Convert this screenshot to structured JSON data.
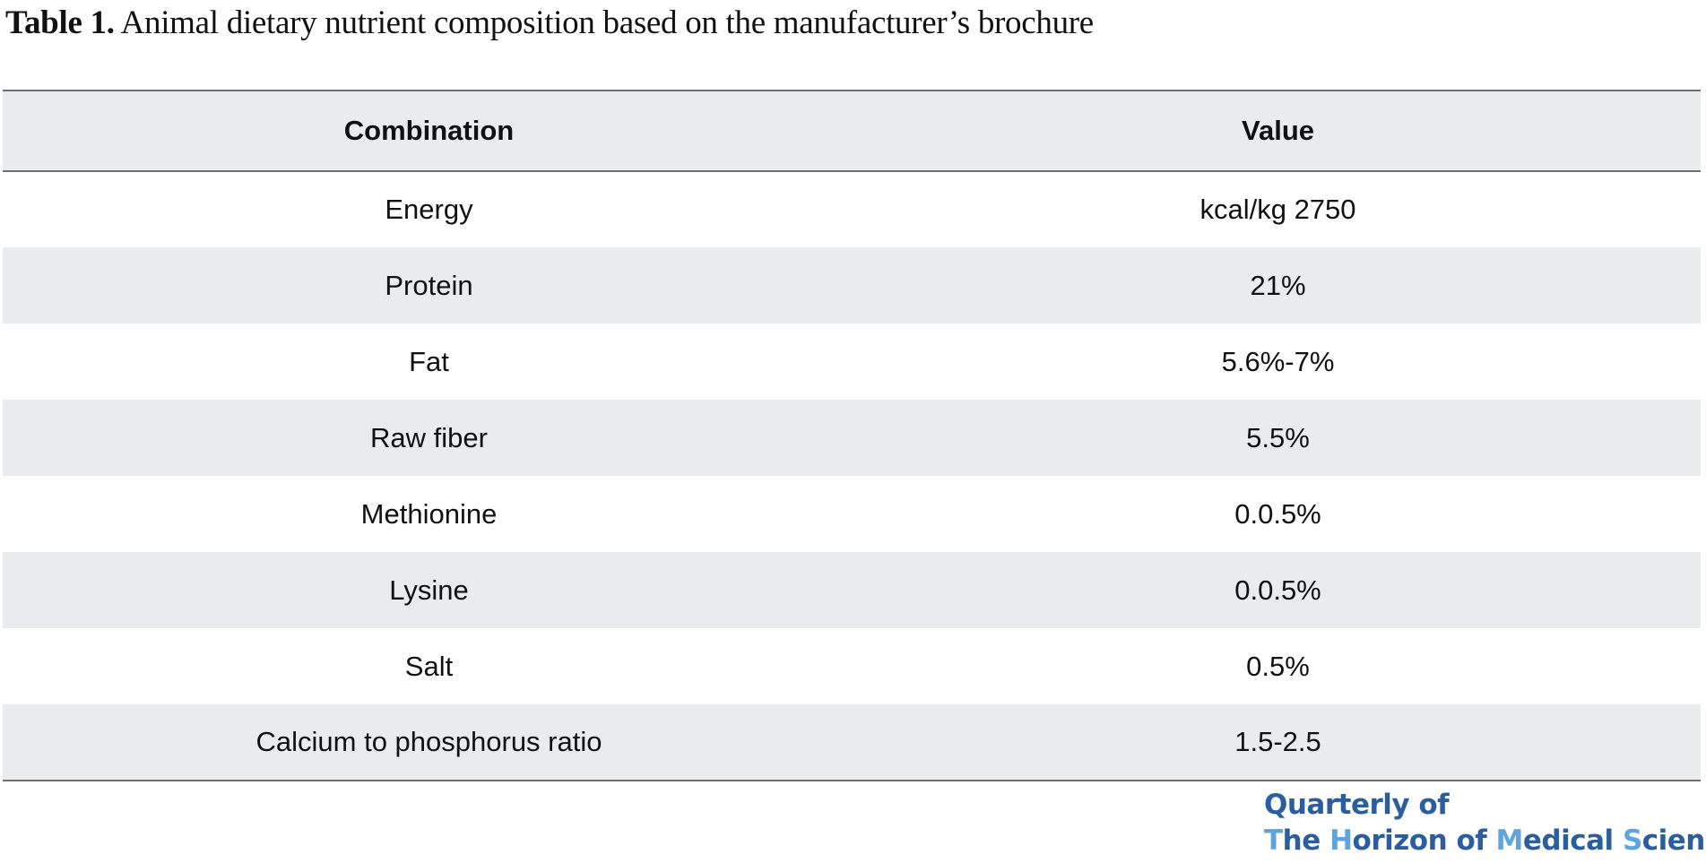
{
  "caption": {
    "label": "Table 1.",
    "text": " Animal dietary nutrient composition based on the manufacturer’s brochure"
  },
  "table": {
    "headers": [
      "Combination",
      "Value"
    ],
    "rows": [
      {
        "combination": "Energy",
        "value": "kcal/kg 2750"
      },
      {
        "combination": "Protein",
        "value": "21%"
      },
      {
        "combination": "Fat",
        "value": "5.6%-7%"
      },
      {
        "combination": "Raw fiber",
        "value": "5.5%"
      },
      {
        "combination": "Methionine",
        "value": "0.0.5%"
      },
      {
        "combination": "Lysine",
        "value": "0.0.5%"
      },
      {
        "combination": "Salt",
        "value": "0.5%"
      },
      {
        "combination": "Calcium to phosphorus ratio",
        "value": "1.5-2.5"
      }
    ]
  },
  "journal_logo": {
    "line1": "Quarterly of",
    "line2": "The Horizon of Medical Sciences"
  },
  "colors": {
    "header_bg": "#eaebed",
    "rule": "#6e6e6e",
    "logo_dark": "#2a5e9e",
    "logo_light": "#5fa4dc"
  }
}
